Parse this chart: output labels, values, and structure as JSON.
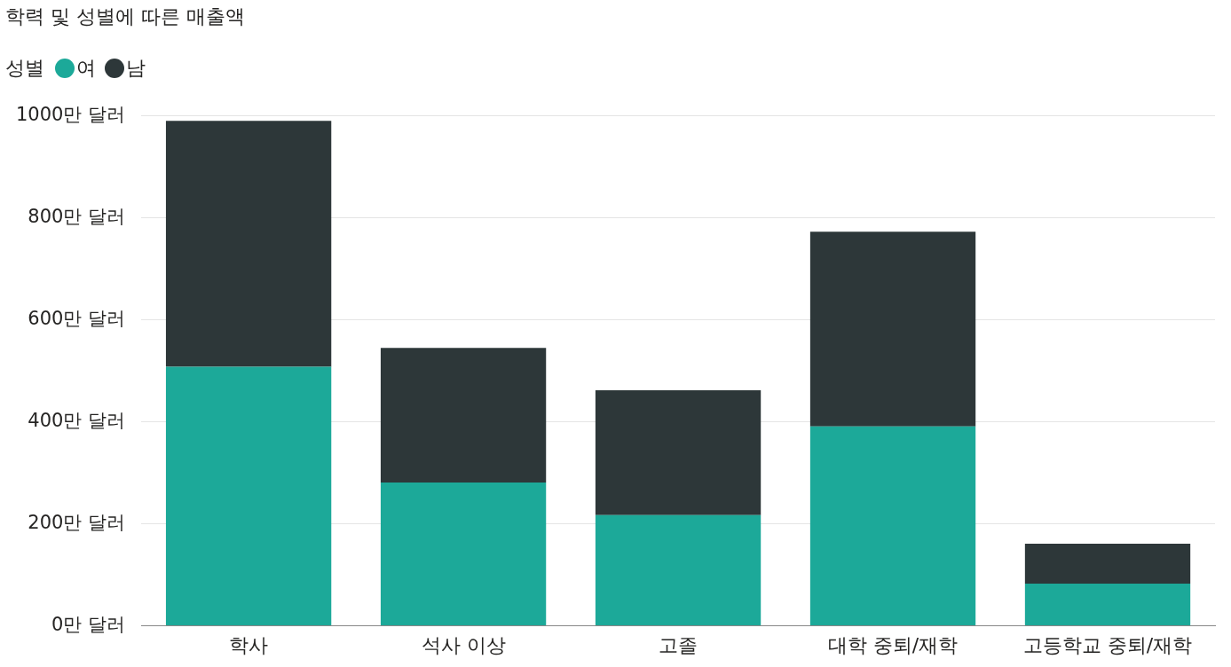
{
  "chart_data": {
    "type": "bar",
    "title": "학력 및 성별에 따른 매출액",
    "legend_title": "성별",
    "legend": "top left",
    "stacked": true,
    "grid": "y",
    "categories": [
      "학사",
      "석사 이상",
      "고졸",
      "대학 중퇴/재학",
      "고등학교 중퇴/재학"
    ],
    "series": [
      {
        "name": "여",
        "color": "#1ca999",
        "values": [
          508,
          281,
          217,
          391,
          83
        ]
      },
      {
        "name": "남",
        "color": "#2d3739",
        "values": [
          482,
          264,
          245,
          382,
          78
        ]
      }
    ],
    "ylim": [
      0,
      1000
    ],
    "yticks": [
      {
        "value": 0,
        "label": "0만 달러"
      },
      {
        "value": 200,
        "label": "200만 달러"
      },
      {
        "value": 400,
        "label": "400만 달러"
      },
      {
        "value": 600,
        "label": "600만 달러"
      },
      {
        "value": 800,
        "label": "800만 달러"
      },
      {
        "value": 1000,
        "label": "1000만 달러"
      }
    ]
  }
}
